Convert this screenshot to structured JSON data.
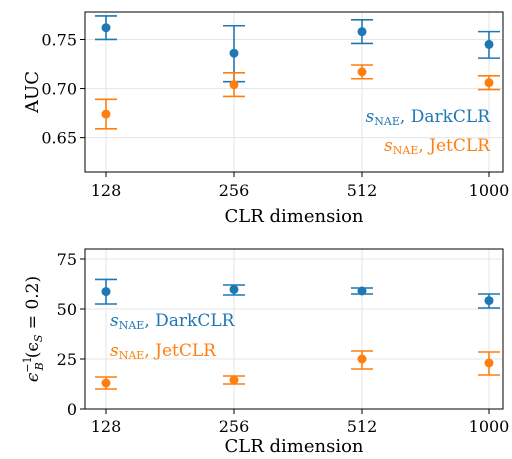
{
  "colors": {
    "darkclr": "#1f77b4",
    "jetclr": "#ff7f0e",
    "grid": "#e6e6e6",
    "axis": "#000000"
  },
  "xtick_labels": [
    "128",
    "256",
    "512",
    "1000"
  ],
  "chart_data": [
    {
      "type": "scatter",
      "error_bars": true,
      "title": "",
      "xlabel": "CLR dimension",
      "ylabel": "AUC",
      "categories": [
        "128",
        "256",
        "512",
        "1000"
      ],
      "ylim": [
        0.615,
        0.778
      ],
      "yticks": [
        0.65,
        0.7,
        0.75
      ],
      "ytick_labels": [
        "0.65",
        "0.70",
        "0.75"
      ],
      "grid": true,
      "legend": "inside-right",
      "series": [
        {
          "name_main": "s",
          "name_sub": "NAE",
          "name_rest": ", DarkCLR",
          "color": "darkclr",
          "values": [
            0.762,
            0.736,
            0.758,
            0.745
          ],
          "err_low": [
            0.75,
            0.707,
            0.746,
            0.731
          ],
          "err_high": [
            0.774,
            0.764,
            0.77,
            0.758
          ]
        },
        {
          "name_main": "s",
          "name_sub": "NAE",
          "name_rest": ", JetCLR",
          "color": "jetclr",
          "values": [
            0.674,
            0.704,
            0.717,
            0.706
          ],
          "err_low": [
            0.659,
            0.692,
            0.71,
            0.699
          ],
          "err_high": [
            0.689,
            0.716,
            0.724,
            0.713
          ]
        }
      ]
    },
    {
      "type": "scatter",
      "error_bars": true,
      "title": "",
      "xlabel": "CLR dimension",
      "ylabel": "ϵB−1(ϵS = 0.2)",
      "ylabel_parts": {
        "eps": "ϵ",
        "sub": "B",
        "sup": "−1",
        "rest": "(ϵ",
        "sub2": "S",
        "tail": " = 0.2)"
      },
      "categories": [
        "128",
        "256",
        "512",
        "1000"
      ],
      "ylim": [
        0,
        80
      ],
      "yticks": [
        0,
        25,
        50,
        75
      ],
      "ytick_labels": [
        "0",
        "25",
        "50",
        "75"
      ],
      "grid": true,
      "legend": "inside-left",
      "series": [
        {
          "name_main": "s",
          "name_sub": "NAE",
          "name_rest": ", DarkCLR",
          "color": "darkclr",
          "values": [
            58.7,
            59.8,
            59.0,
            54.2
          ],
          "err_low": [
            52.5,
            57.0,
            57.5,
            50.5
          ],
          "err_high": [
            64.8,
            62.0,
            60.5,
            57.5
          ]
        },
        {
          "name_main": "s",
          "name_sub": "NAE",
          "name_rest": ", JetCLR",
          "color": "jetclr",
          "values": [
            13.0,
            14.5,
            25.0,
            23.0
          ],
          "err_low": [
            10.0,
            12.5,
            20.0,
            17.0
          ],
          "err_high": [
            16.0,
            16.5,
            29.0,
            28.5
          ]
        }
      ]
    }
  ]
}
